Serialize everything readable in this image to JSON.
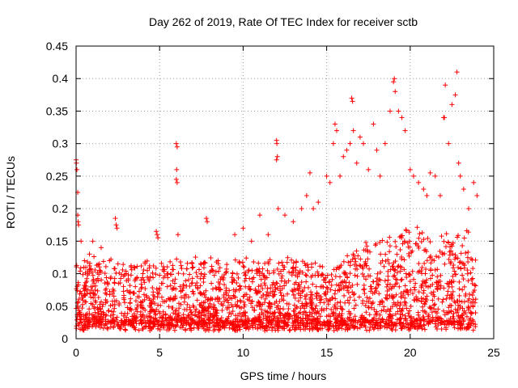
{
  "chart_data": {
    "type": "scatter",
    "title": "Day 262 of 2019, Rate Of TEC Index for receiver sctb",
    "xlabel": "GPS time / hours",
    "ylabel": "ROTI / TECUs",
    "xlim": [
      0,
      25
    ],
    "ylim": [
      0,
      0.45
    ],
    "x_ticks": [
      0,
      5,
      10,
      15,
      20,
      25
    ],
    "x_tick_labels": [
      "0",
      "5",
      "10",
      "15",
      "20",
      "25"
    ],
    "y_ticks": [
      0,
      0.05,
      0.1,
      0.15,
      0.2,
      0.25,
      0.3,
      0.35,
      0.4,
      0.45
    ],
    "y_tick_labels": [
      "0",
      "0.05",
      "0.1",
      "0.15",
      "0.2",
      "0.25",
      "0.3",
      "0.35",
      "0.4",
      "0.45"
    ],
    "grid": true,
    "marker": "+",
    "color": "#ff0000",
    "series": [
      {
        "name": "ROTI",
        "x_range": [
          0,
          24
        ],
        "note_dense_band": "dense scatter mostly between 0.01 and 0.12 TECU/min across the day, rising after 15 h",
        "points": [
          [
            0.0,
            0.275
          ],
          [
            0.02,
            0.27
          ],
          [
            0.05,
            0.26
          ],
          [
            0.1,
            0.225
          ],
          [
            0.1,
            0.19
          ],
          [
            0.12,
            0.18
          ],
          [
            0.15,
            0.175
          ],
          [
            0.3,
            0.15
          ],
          [
            0.5,
            0.12
          ],
          [
            0.8,
            0.13
          ],
          [
            1.0,
            0.15
          ],
          [
            1.5,
            0.14
          ],
          [
            2.0,
            0.12
          ],
          [
            2.35,
            0.185
          ],
          [
            2.4,
            0.175
          ],
          [
            2.45,
            0.17
          ],
          [
            3.0,
            0.1
          ],
          [
            3.5,
            0.11
          ],
          [
            4.0,
            0.1
          ],
          [
            4.8,
            0.165
          ],
          [
            4.85,
            0.16
          ],
          [
            4.9,
            0.155
          ],
          [
            5.5,
            0.1
          ],
          [
            6.0,
            0.3
          ],
          [
            6.05,
            0.295
          ],
          [
            6.02,
            0.26
          ],
          [
            6.0,
            0.245
          ],
          [
            6.05,
            0.24
          ],
          [
            6.1,
            0.16
          ],
          [
            7.0,
            0.11
          ],
          [
            7.5,
            0.1
          ],
          [
            7.8,
            0.185
          ],
          [
            7.85,
            0.18
          ],
          [
            8.5,
            0.12
          ],
          [
            9.5,
            0.16
          ],
          [
            10.0,
            0.17
          ],
          [
            10.5,
            0.15
          ],
          [
            11.0,
            0.19
          ],
          [
            11.5,
            0.16
          ],
          [
            12.0,
            0.305
          ],
          [
            12.02,
            0.3
          ],
          [
            12.05,
            0.28
          ],
          [
            12.0,
            0.275
          ],
          [
            12.1,
            0.2
          ],
          [
            12.5,
            0.19
          ],
          [
            13.0,
            0.18
          ],
          [
            13.5,
            0.2
          ],
          [
            13.8,
            0.22
          ],
          [
            14.0,
            0.255
          ],
          [
            14.2,
            0.2
          ],
          [
            14.5,
            0.21
          ],
          [
            15.0,
            0.25
          ],
          [
            15.2,
            0.24
          ],
          [
            15.4,
            0.3
          ],
          [
            15.5,
            0.33
          ],
          [
            15.6,
            0.32
          ],
          [
            15.8,
            0.25
          ],
          [
            16.0,
            0.28
          ],
          [
            16.2,
            0.29
          ],
          [
            16.4,
            0.3
          ],
          [
            16.5,
            0.37
          ],
          [
            16.55,
            0.365
          ],
          [
            16.6,
            0.32
          ],
          [
            16.8,
            0.27
          ],
          [
            17.0,
            0.31
          ],
          [
            17.2,
            0.3
          ],
          [
            17.5,
            0.26
          ],
          [
            17.8,
            0.33
          ],
          [
            18.0,
            0.29
          ],
          [
            18.2,
            0.25
          ],
          [
            18.5,
            0.3
          ],
          [
            18.8,
            0.35
          ],
          [
            19.0,
            0.395
          ],
          [
            19.05,
            0.4
          ],
          [
            19.1,
            0.38
          ],
          [
            19.3,
            0.35
          ],
          [
            19.5,
            0.34
          ],
          [
            19.7,
            0.32
          ],
          [
            20.0,
            0.26
          ],
          [
            20.2,
            0.25
          ],
          [
            20.5,
            0.24
          ],
          [
            20.8,
            0.23
          ],
          [
            21.0,
            0.22
          ],
          [
            21.2,
            0.255
          ],
          [
            21.5,
            0.25
          ],
          [
            21.8,
            0.22
          ],
          [
            22.0,
            0.34
          ],
          [
            22.05,
            0.34
          ],
          [
            22.1,
            0.39
          ],
          [
            22.3,
            0.3
          ],
          [
            22.5,
            0.36
          ],
          [
            22.7,
            0.375
          ],
          [
            22.8,
            0.41
          ],
          [
            22.9,
            0.27
          ],
          [
            23.0,
            0.25
          ],
          [
            23.2,
            0.23
          ],
          [
            23.5,
            0.2
          ],
          [
            23.8,
            0.24
          ],
          [
            24.0,
            0.22
          ]
        ]
      }
    ]
  }
}
